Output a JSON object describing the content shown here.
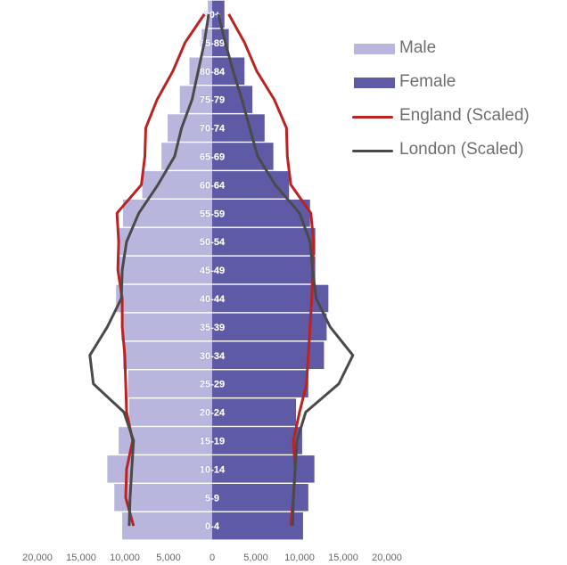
{
  "chart_data": {
    "type": "bar",
    "orientation": "horizontal",
    "layout": "population-pyramid",
    "categories": [
      "0-4",
      "5-9",
      "10-14",
      "15-19",
      "20-24",
      "25-29",
      "30-34",
      "35-39",
      "40-44",
      "45-49",
      "50-54",
      "55-59",
      "60-64",
      "65-69",
      "70-74",
      "75-79",
      "80-84",
      "85-89",
      "90+"
    ],
    "series": [
      {
        "name": "Male",
        "color": "#b8b6dd",
        "values": [
          10300,
          11200,
          12000,
          10700,
          9500,
          9600,
          10200,
          10400,
          11000,
          10700,
          10800,
          10200,
          8000,
          5800,
          5100,
          3700,
          2600,
          1200,
          500
        ]
      },
      {
        "name": "Female",
        "color": "#5f5aa6",
        "values": [
          10400,
          11000,
          11700,
          10300,
          9600,
          11000,
          12800,
          13100,
          13300,
          11800,
          11800,
          11200,
          8800,
          7000,
          6000,
          4600,
          3700,
          1900,
          1400
        ]
      }
    ],
    "lines": [
      {
        "name": "England (Scaled)",
        "color": "#bb2222",
        "male": [
          9000,
          9900,
          9800,
          9100,
          9800,
          9900,
          10000,
          10300,
          10300,
          10800,
          10700,
          10900,
          8100,
          7700,
          7600,
          6300,
          4500,
          3100,
          900
        ],
        "female": [
          9000,
          9300,
          9500,
          9300,
          10000,
          10800,
          11000,
          11200,
          11400,
          11500,
          11600,
          11300,
          9000,
          8600,
          8500,
          7100,
          5100,
          3700,
          1900
        ]
      },
      {
        "name": "London (Scaled)",
        "color": "#4a4a4a",
        "male": [
          9500,
          9400,
          9200,
          9000,
          10100,
          13600,
          14000,
          12000,
          10400,
          10300,
          9800,
          8400,
          6200,
          4300,
          3500,
          2300,
          1600,
          900,
          400
        ],
        "female": [
          9200,
          9300,
          9500,
          9700,
          10700,
          14500,
          16100,
          13500,
          11900,
          11500,
          11200,
          10000,
          7200,
          5200,
          4300,
          3400,
          2400,
          1500,
          700
        ]
      }
    ],
    "x_tick_labels": [
      "20,000",
      "15,000",
      "10,000",
      "5,000",
      "0",
      "5,000",
      "10,000",
      "15,000",
      "20,000"
    ],
    "xlim": [
      -20000,
      20000
    ],
    "legend_position": "right",
    "grid": false
  }
}
